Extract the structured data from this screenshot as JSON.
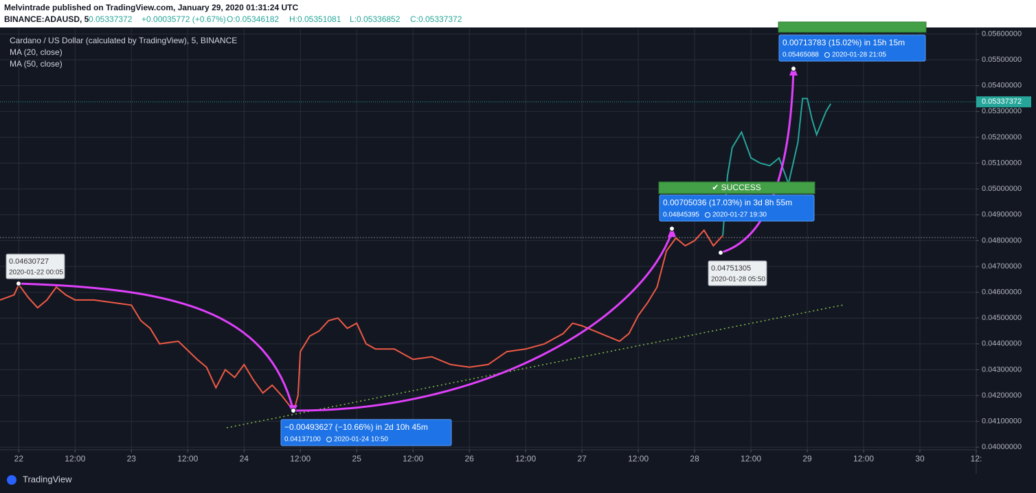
{
  "header": {
    "author_line": "Melvintrade published on TradingView.com, January 29, 2020 01:31:24 UTC",
    "symbol": "BINANCE:ADAUSD, 5",
    "last": "0.05337372",
    "change": "+0.00035772 (+0.67%)",
    "open": "O:0.05346182",
    "high": "H:0.05351081",
    "low": "L:0.05336852",
    "close": "C:0.05337372"
  },
  "legend": [
    "Cardano / US Dollar (calculated by TradingView), 5, BINANCE",
    "MA (20, close)",
    "MA (50, close)"
  ],
  "annotations": [
    {
      "line1": "0.04630727",
      "line2": "2020-01-22 00:05"
    },
    {
      "line1": "−0.00493627 (−10.66%) in 2d 10h 45m",
      "line2": "0.04137100",
      "line3": "2020-01-24  10:50"
    },
    {
      "status": "✔ SUCCESS",
      "line1": "0.00705036 (17.03%) in 3d 8h 55m",
      "line2": "0.04845395",
      "line3": "2020-01-27  19:30"
    },
    {
      "line1": "0.04751305",
      "line2": "2020-01-28 05:50"
    },
    {
      "line1": "0.00713783 (15.02%) in 15h 15m",
      "line2": "0.05465088",
      "line3": "2020-01-28  21:05"
    }
  ],
  "footer": "TradingView",
  "chart_data": {
    "type": "line",
    "xlim": [
      -4,
      204
    ],
    "ylim": [
      0.0399,
      0.0562
    ],
    "xticks": [
      {
        "value": 0,
        "label": "22"
      },
      {
        "value": 12,
        "label": "12:00"
      },
      {
        "value": 24,
        "label": "23"
      },
      {
        "value": 36,
        "label": "12:00"
      },
      {
        "value": 48,
        "label": "24"
      },
      {
        "value": 60,
        "label": "12:00"
      },
      {
        "value": 72,
        "label": "25"
      },
      {
        "value": 84,
        "label": "12:00"
      },
      {
        "value": 96,
        "label": "26"
      },
      {
        "value": 108,
        "label": "12:00"
      },
      {
        "value": 120,
        "label": "27"
      },
      {
        "value": 132,
        "label": "12:00"
      },
      {
        "value": 144,
        "label": "28"
      },
      {
        "value": 156,
        "label": "12:00"
      },
      {
        "value": 168,
        "label": "29"
      },
      {
        "value": 180,
        "label": "12:00"
      },
      {
        "value": 192,
        "label": "30"
      },
      {
        "value": 204,
        "label": "12:"
      }
    ],
    "yticks": [
      {
        "value": 0.04,
        "label": "0.04000000"
      },
      {
        "value": 0.041,
        "label": "0.04100000"
      },
      {
        "value": 0.042,
        "label": "0.04200000"
      },
      {
        "value": 0.043,
        "label": "0.04300000"
      },
      {
        "value": 0.044,
        "label": "0.04400000"
      },
      {
        "value": 0.045,
        "label": "0.04500000"
      },
      {
        "value": 0.046,
        "label": "0.04600000"
      },
      {
        "value": 0.047,
        "label": "0.04700000"
      },
      {
        "value": 0.048,
        "label": "0.04800000"
      },
      {
        "value": 0.049,
        "label": "0.04900000"
      },
      {
        "value": 0.05,
        "label": "0.05000000"
      },
      {
        "value": 0.051,
        "label": "0.05100000"
      },
      {
        "value": 0.052,
        "label": "0.05200000"
      },
      {
        "value": 0.053,
        "label": "0.05300000"
      },
      {
        "value": 0.054,
        "label": "0.05400000"
      },
      {
        "value": 0.055,
        "label": "0.05500000"
      },
      {
        "value": 0.056,
        "label": "0.05600000"
      }
    ],
    "last_price": 0.05337372,
    "grid": true,
    "series": [
      {
        "color": "#f05a45",
        "x": [
          -4,
          -1,
          0,
          2,
          4,
          6,
          8,
          10,
          12,
          16,
          20,
          24,
          26,
          28,
          30,
          34,
          38,
          40,
          42,
          44,
          46,
          48,
          50,
          52,
          54,
          56,
          58.6,
          59.5,
          60,
          62,
          64,
          66,
          68,
          70,
          72,
          74,
          76,
          80,
          84,
          88,
          92,
          96,
          100,
          104,
          108,
          112,
          116,
          118,
          120,
          124,
          128,
          130,
          132,
          134,
          136,
          138,
          140,
          142,
          144,
          146,
          148,
          150
        ],
        "values": [
          0.0457,
          0.0459,
          0.0463,
          0.0458,
          0.0454,
          0.0457,
          0.0462,
          0.0459,
          0.0457,
          0.0457,
          0.0456,
          0.0455,
          0.0449,
          0.0446,
          0.044,
          0.0441,
          0.0434,
          0.0431,
          0.0423,
          0.043,
          0.0427,
          0.0432,
          0.0426,
          0.0421,
          0.0424,
          0.042,
          0.0414,
          0.042,
          0.0437,
          0.0443,
          0.0445,
          0.0449,
          0.045,
          0.0446,
          0.0448,
          0.044,
          0.0438,
          0.0438,
          0.0434,
          0.0435,
          0.0432,
          0.0431,
          0.0432,
          0.0437,
          0.0438,
          0.044,
          0.0444,
          0.0448,
          0.0447,
          0.0444,
          0.0441,
          0.0444,
          0.0451,
          0.0456,
          0.0462,
          0.0476,
          0.0481,
          0.0478,
          0.048,
          0.0484,
          0.0478,
          0.0482
        ]
      },
      {
        "color": "#26a69a",
        "x": [
          150,
          151,
          152,
          154,
          156,
          158,
          160,
          162,
          164,
          166,
          167,
          168,
          169,
          170,
          172,
          173
        ],
        "values": [
          0.0482,
          0.0505,
          0.0516,
          0.0522,
          0.0512,
          0.051,
          0.0509,
          0.0512,
          0.0502,
          0.0518,
          0.0535,
          0.0535,
          0.0527,
          0.0521,
          0.053,
          0.0533
        ]
      }
    ]
  }
}
